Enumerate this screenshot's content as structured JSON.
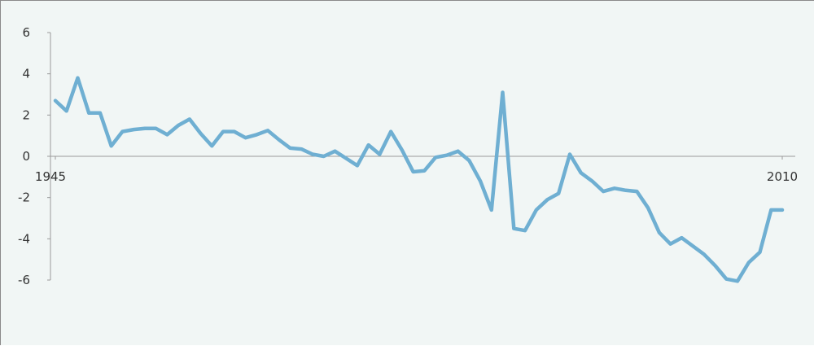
{
  "chart_data": {
    "type": "line",
    "title": "",
    "xlabel": "",
    "ylabel": "",
    "xlim": [
      1945,
      2010
    ],
    "ylim": [
      -6,
      6
    ],
    "y_ticks": [
      6,
      4,
      2,
      0,
      -2,
      -4,
      -6
    ],
    "x_tick_labels": [
      {
        "year": 1945,
        "label": "1945"
      },
      {
        "year": 2010,
        "label": "2010"
      }
    ],
    "grid": false,
    "legend": "none",
    "line_color": "#6fafd2",
    "axis_color": "#9a9a9a",
    "series": [
      {
        "x": [
          1945,
          1946,
          1947,
          1948,
          1949,
          1950,
          1951,
          1952,
          1953,
          1954,
          1955,
          1956,
          1957,
          1958,
          1959,
          1960,
          1961,
          1962,
          1963,
          1964,
          1965,
          1966,
          1967,
          1968,
          1969,
          1970,
          1971,
          1972,
          1973,
          1974,
          1975,
          1976,
          1977,
          1978,
          1979,
          1980,
          1981,
          1982,
          1983,
          1984,
          1985,
          1986,
          1987,
          1988,
          1989,
          1990,
          1991,
          1992,
          1993,
          1994,
          1995,
          1996,
          1997,
          1998,
          1999,
          2000,
          2001,
          2002,
          2003,
          2004,
          2005,
          2006,
          2007,
          2008,
          2009,
          2010
        ],
        "y": [
          2.7,
          2.2,
          3.8,
          2.1,
          2.1,
          0.5,
          1.2,
          1.3,
          1.35,
          1.35,
          1.05,
          1.5,
          1.8,
          1.1,
          0.5,
          1.2,
          1.2,
          0.9,
          1.05,
          1.25,
          0.8,
          0.4,
          0.35,
          0.1,
          0.0,
          0.25,
          -0.1,
          -0.45,
          0.55,
          0.1,
          1.2,
          0.3,
          -0.75,
          -0.7,
          -0.05,
          0.05,
          0.25,
          -0.2,
          -1.2,
          -2.6,
          3.1,
          -3.5,
          -3.6,
          -2.6,
          -2.1,
          -1.8,
          0.1,
          -0.8,
          -1.2,
          -1.7,
          -1.55,
          -1.65,
          -1.7,
          -2.5,
          -3.7,
          -4.25,
          -3.95,
          -4.35,
          -4.75,
          -5.3,
          -5.95,
          -6.05,
          -5.15,
          -4.65,
          -2.6,
          -2.6
        ]
      }
    ]
  }
}
